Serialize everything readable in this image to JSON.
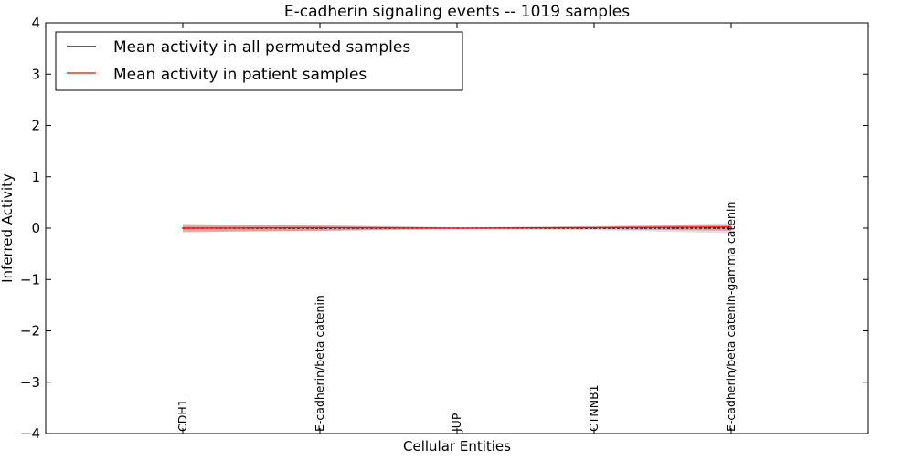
{
  "chart_data": {
    "type": "line",
    "title": "E-cadherin signaling events -- 1019 samples",
    "xlabel": "Cellular Entities",
    "ylabel": "Inferred Activity",
    "ylim": [
      -4,
      4
    ],
    "yticks": [
      4,
      3,
      2,
      1,
      0,
      -1,
      -2,
      -3,
      -4
    ],
    "ytick_labels": [
      "4",
      "3",
      "2",
      "1",
      "0",
      "−1",
      "−2",
      "−3",
      "−4"
    ],
    "categories": [
      "CDH1",
      "E-cadherin/beta catenin",
      "JUP",
      "CTNNB1",
      "E-cadherin/beta catenin-gamma catenin"
    ],
    "grid": false,
    "legend_position": "top-left",
    "series": [
      {
        "name": "Mean activity in all permuted samples",
        "color": "#000000",
        "values": [
          0.0,
          0.0,
          0.0,
          0.0,
          0.0
        ],
        "band_low": [
          -0.04,
          -0.06,
          -0.02,
          -0.04,
          -0.1
        ],
        "band_high": [
          0.04,
          0.06,
          0.02,
          0.04,
          0.1
        ],
        "band_color": "#bbbbbb"
      },
      {
        "name": "Mean activity in patient samples",
        "color": "#ff0000",
        "values": [
          0.0,
          0.01,
          0.0,
          0.01,
          0.02
        ],
        "band_low": [
          -0.08,
          -0.05,
          -0.01,
          -0.02,
          -0.05
        ],
        "band_high": [
          0.08,
          0.05,
          0.01,
          0.03,
          0.07
        ],
        "band_color": "#e06666"
      }
    ]
  }
}
